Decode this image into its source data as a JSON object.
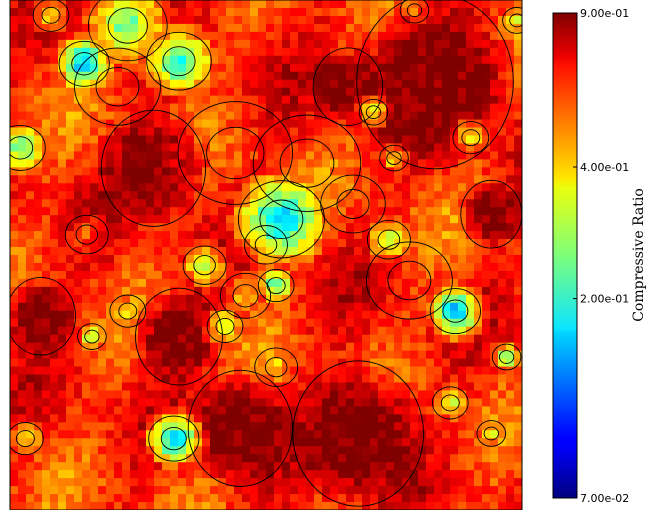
{
  "chart_data": {
    "type": "heatmap",
    "title": "",
    "xlabel": "",
    "ylabel": "",
    "colormap": "jet",
    "has_contours": true,
    "colorbar": {
      "label": "Compressive Ratio",
      "scale": "log",
      "range": [
        0.07,
        0.9
      ],
      "ticks": [
        {
          "value": 0.9,
          "label": "9.00e-01"
        },
        {
          "value": 0.4,
          "label": "4.00e-01"
        },
        {
          "value": 0.2,
          "label": "2.00e-01"
        },
        {
          "value": 0.07,
          "label": "7.00e-02"
        }
      ]
    },
    "background_color": "#c81a0a",
    "blobs": [
      {
        "x": 0.145,
        "y": 0.125,
        "r": 0.07,
        "value": 0.08,
        "strength": 1.0
      },
      {
        "x": 0.23,
        "y": 0.05,
        "r": 0.11,
        "value": 0.12,
        "strength": 0.9
      },
      {
        "x": 0.33,
        "y": 0.12,
        "r": 0.09,
        "value": 0.1,
        "strength": 1.0
      },
      {
        "x": 0.02,
        "y": 0.29,
        "r": 0.07,
        "value": 0.12,
        "strength": 0.9
      },
      {
        "x": 0.21,
        "y": 0.17,
        "r": 0.12,
        "value": 0.45,
        "strength": 0.6
      },
      {
        "x": 0.44,
        "y": 0.3,
        "r": 0.16,
        "value": 0.28,
        "strength": 0.6
      },
      {
        "x": 0.53,
        "y": 0.43,
        "r": 0.12,
        "value": 0.09,
        "strength": 1.0
      },
      {
        "x": 0.58,
        "y": 0.32,
        "r": 0.15,
        "value": 0.45,
        "strength": 0.55
      },
      {
        "x": 0.5,
        "y": 0.48,
        "r": 0.06,
        "value": 0.15,
        "strength": 0.7
      },
      {
        "x": 0.38,
        "y": 0.52,
        "r": 0.06,
        "value": 0.12,
        "strength": 0.8
      },
      {
        "x": 0.46,
        "y": 0.58,
        "r": 0.07,
        "value": 0.2,
        "strength": 0.7
      },
      {
        "x": 0.52,
        "y": 0.56,
        "r": 0.05,
        "value": 0.1,
        "strength": 0.9
      },
      {
        "x": 0.67,
        "y": 0.4,
        "r": 0.09,
        "value": 0.35,
        "strength": 0.6
      },
      {
        "x": 0.74,
        "y": 0.47,
        "r": 0.06,
        "value": 0.12,
        "strength": 0.8
      },
      {
        "x": 0.87,
        "y": 0.61,
        "r": 0.07,
        "value": 0.08,
        "strength": 1.0
      },
      {
        "x": 0.78,
        "y": 0.55,
        "r": 0.12,
        "value": 0.45,
        "strength": 0.6
      },
      {
        "x": 0.9,
        "y": 0.27,
        "r": 0.05,
        "value": 0.18,
        "strength": 0.8
      },
      {
        "x": 0.71,
        "y": 0.22,
        "r": 0.04,
        "value": 0.15,
        "strength": 0.8
      },
      {
        "x": 0.42,
        "y": 0.64,
        "r": 0.05,
        "value": 0.12,
        "strength": 0.8
      },
      {
        "x": 0.52,
        "y": 0.72,
        "r": 0.06,
        "value": 0.18,
        "strength": 0.7
      },
      {
        "x": 0.32,
        "y": 0.86,
        "r": 0.07,
        "value": 0.08,
        "strength": 1.0
      },
      {
        "x": 0.16,
        "y": 0.66,
        "r": 0.04,
        "value": 0.12,
        "strength": 0.8
      },
      {
        "x": 0.03,
        "y": 0.86,
        "r": 0.05,
        "value": 0.18,
        "strength": 0.8
      },
      {
        "x": 0.86,
        "y": 0.79,
        "r": 0.05,
        "value": 0.15,
        "strength": 0.8
      },
      {
        "x": 0.94,
        "y": 0.85,
        "r": 0.04,
        "value": 0.18,
        "strength": 0.8
      },
      {
        "x": 0.97,
        "y": 0.7,
        "r": 0.04,
        "value": 0.12,
        "strength": 0.9
      },
      {
        "x": 0.15,
        "y": 0.46,
        "r": 0.06,
        "value": 0.25,
        "strength": 0.6
      },
      {
        "x": 0.08,
        "y": 0.03,
        "r": 0.05,
        "value": 0.15,
        "strength": 0.7
      },
      {
        "x": 0.99,
        "y": 0.04,
        "r": 0.04,
        "value": 0.15,
        "strength": 0.8
      },
      {
        "x": 0.23,
        "y": 0.61,
        "r": 0.05,
        "value": 0.18,
        "strength": 0.7
      },
      {
        "x": 0.79,
        "y": 0.02,
        "r": 0.04,
        "value": 0.25,
        "strength": 0.7
      },
      {
        "x": 0.75,
        "y": 0.31,
        "r": 0.04,
        "value": 0.18,
        "strength": 0.8
      }
    ],
    "dark_regions": [
      {
        "x": 0.83,
        "y": 0.16,
        "r": 0.18,
        "value": 0.9
      },
      {
        "x": 0.28,
        "y": 0.33,
        "r": 0.12,
        "value": 0.85
      },
      {
        "x": 0.68,
        "y": 0.85,
        "r": 0.15,
        "value": 0.88
      },
      {
        "x": 0.45,
        "y": 0.84,
        "r": 0.12,
        "value": 0.88
      },
      {
        "x": 0.33,
        "y": 0.66,
        "r": 0.1,
        "value": 0.85
      },
      {
        "x": 0.06,
        "y": 0.62,
        "r": 0.08,
        "value": 0.85
      },
      {
        "x": 0.94,
        "y": 0.42,
        "r": 0.07,
        "value": 0.85
      },
      {
        "x": 0.66,
        "y": 0.17,
        "r": 0.08,
        "value": 0.85
      }
    ]
  }
}
